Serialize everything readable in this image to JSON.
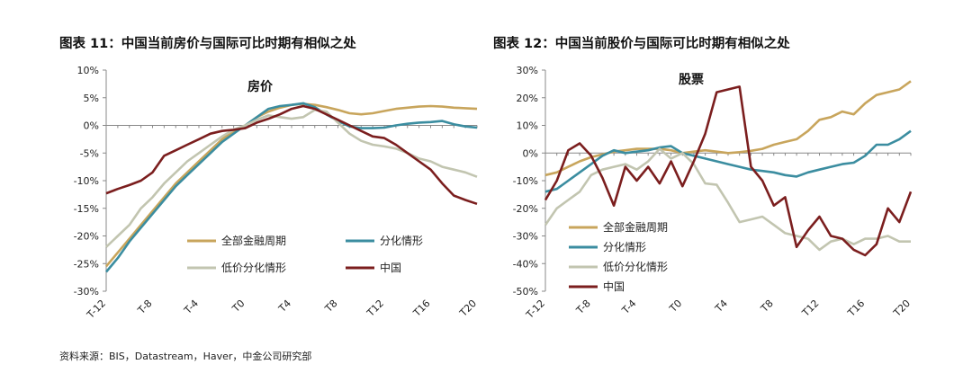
{
  "figures": {
    "left_title": "图表 11：中国当前房价与国际可比时期有相似之处",
    "right_title": "图表 12：中国当前股价与国际可比时期有相似之处"
  },
  "source": "资料来源：BIS，Datastream，Haver，中金公司研究部",
  "colors": {
    "financial_cycle": "#C8A55C",
    "divergence": "#3B8DA0",
    "low_price_divergence": "#C2C5B0",
    "china": "#7B1E1E"
  },
  "chart_data": [
    {
      "type": "line",
      "annotation": "房价",
      "x": [
        -12,
        -11,
        -10,
        -9,
        -8,
        -7,
        -6,
        -5,
        -4,
        -3,
        -2,
        -1,
        0,
        1,
        2,
        3,
        4,
        5,
        6,
        7,
        8,
        9,
        10,
        11,
        12,
        13,
        14,
        15,
        16,
        17,
        18,
        19,
        20
      ],
      "xticks": [
        "T-12",
        "T-8",
        "T-4",
        "T0",
        "T4",
        "T8",
        "T12",
        "T16",
        "T20"
      ],
      "xtick_values": [
        -12,
        -8,
        -4,
        0,
        4,
        8,
        12,
        16,
        20
      ],
      "ylim": [
        -30,
        10
      ],
      "yticks": [
        "10%",
        "5%",
        "0%",
        "-5%",
        "-10%",
        "-15%",
        "-20%",
        "-25%",
        "-30%"
      ],
      "ytick_values": [
        10,
        5,
        0,
        -5,
        -10,
        -15,
        -20,
        -25,
        -30
      ],
      "legend_position": "bottom-inside",
      "legend_columns": 2,
      "series": [
        {
          "name": "全部金融周期",
          "color_key": "financial_cycle",
          "values": [
            -25.5,
            -23,
            -20.5,
            -18,
            -15.5,
            -13,
            -10.5,
            -8.5,
            -6.5,
            -4.5,
            -2.5,
            -1,
            0,
            1.5,
            2.5,
            3.2,
            3.7,
            3.9,
            3.7,
            3.3,
            2.8,
            2.2,
            2,
            2.2,
            2.6,
            3,
            3.2,
            3.4,
            3.5,
            3.4,
            3.2,
            3.1,
            3
          ]
        },
        {
          "name": "分化情形",
          "color_key": "divergence",
          "values": [
            -26.5,
            -24,
            -21,
            -18.5,
            -16,
            -13.5,
            -11,
            -9,
            -7,
            -5,
            -3,
            -1.5,
            0,
            1.5,
            3,
            3.5,
            3.7,
            4,
            3.3,
            2,
            0.8,
            -0.2,
            -0.5,
            -0.5,
            -0.4,
            0,
            0.3,
            0.5,
            0.6,
            0.8,
            0.2,
            -0.2,
            -0.4
          ]
        },
        {
          "name": "低价分化情形",
          "color_key": "low_price_divergence",
          "values": [
            -22,
            -20,
            -18,
            -15,
            -13,
            -10.5,
            -8.5,
            -6.5,
            -5,
            -3.5,
            -2,
            -0.8,
            0,
            1,
            1.8,
            1.5,
            1.2,
            1.5,
            2.8,
            2.5,
            0.5,
            -1.5,
            -2.8,
            -3.5,
            -3.8,
            -4.2,
            -5,
            -6,
            -6.5,
            -7.5,
            -8,
            -8.5,
            -9.3
          ]
        },
        {
          "name": "中国",
          "color_key": "china",
          "values": [
            -12.3,
            -11.5,
            -10.8,
            -10,
            -8.5,
            -5.5,
            -4.5,
            -3.5,
            -2.5,
            -1.5,
            -1,
            -0.8,
            -0.5,
            0.5,
            1.2,
            2,
            3,
            3.5,
            3,
            2,
            1,
            0,
            -1,
            -2,
            -2.3,
            -3.5,
            -5,
            -6.5,
            -8,
            -10.5,
            -12.7,
            -13.5,
            -14.2
          ]
        }
      ]
    },
    {
      "type": "line",
      "annotation": "股票",
      "x": [
        -12,
        -11,
        -10,
        -9,
        -8,
        -7,
        -6,
        -5,
        -4,
        -3,
        -2,
        -1,
        0,
        1,
        2,
        3,
        4,
        5,
        6,
        7,
        8,
        9,
        10,
        11,
        12,
        13,
        14,
        15,
        16,
        17,
        18,
        19,
        20
      ],
      "xticks": [
        "T-12",
        "T-8",
        "T-4",
        "T0",
        "T4",
        "T8",
        "T12",
        "T16",
        "T20"
      ],
      "xtick_values": [
        -12,
        -8,
        -4,
        0,
        4,
        8,
        12,
        16,
        20
      ],
      "ylim": [
        -50,
        30
      ],
      "yticks": [
        "30%",
        "20%",
        "10%",
        "0%",
        "-10%",
        "-20%",
        "-30%",
        "-40%",
        "-50%"
      ],
      "ytick_values": [
        30,
        20,
        10,
        0,
        -10,
        -20,
        -30,
        -40,
        -50
      ],
      "legend_position": "bottom-left",
      "legend_columns": 1,
      "series": [
        {
          "name": "全部金融周期",
          "color_key": "financial_cycle",
          "values": [
            -8,
            -7,
            -5,
            -3,
            -1.5,
            -0.5,
            0.5,
            1,
            1.5,
            1.5,
            1.5,
            1,
            0,
            0.5,
            1,
            0.5,
            0,
            0.3,
            0.8,
            1.5,
            3,
            4,
            5,
            8,
            12,
            13,
            15,
            14,
            18,
            21,
            22,
            23,
            26
          ]
        },
        {
          "name": "分化情形",
          "color_key": "divergence",
          "values": [
            -14,
            -13,
            -10,
            -7,
            -4,
            -1,
            1,
            0,
            0.5,
            1,
            2,
            2.5,
            0,
            -1,
            -2,
            -3,
            -4,
            -5,
            -6,
            -6.5,
            -7,
            -8,
            -8.5,
            -7,
            -6,
            -5,
            -4,
            -3.5,
            -1,
            3,
            3,
            5,
            8
          ]
        },
        {
          "name": "低价分化情形",
          "color_key": "low_price_divergence",
          "values": [
            -26,
            -20,
            -17,
            -14,
            -8,
            -6,
            -5,
            -4,
            -6,
            -3,
            1.5,
            -2,
            0,
            -4,
            -11,
            -11.5,
            -18,
            -25,
            -24,
            -23,
            -26,
            -29,
            -30,
            -31,
            -35,
            -32,
            -31,
            -33,
            -31,
            -31,
            -30,
            -32,
            -32
          ]
        },
        {
          "name": "中国",
          "color_key": "china",
          "values": [
            -17,
            -10,
            1,
            3.5,
            -1,
            -9,
            -19,
            -5,
            -10,
            -5,
            -11,
            -3,
            -12,
            -3,
            7,
            22,
            23,
            24,
            -5,
            -10,
            -19,
            -16,
            -34,
            -28,
            -23,
            -30,
            -31,
            -35,
            -37,
            -33,
            -20,
            -25,
            -14
          ]
        }
      ]
    }
  ]
}
